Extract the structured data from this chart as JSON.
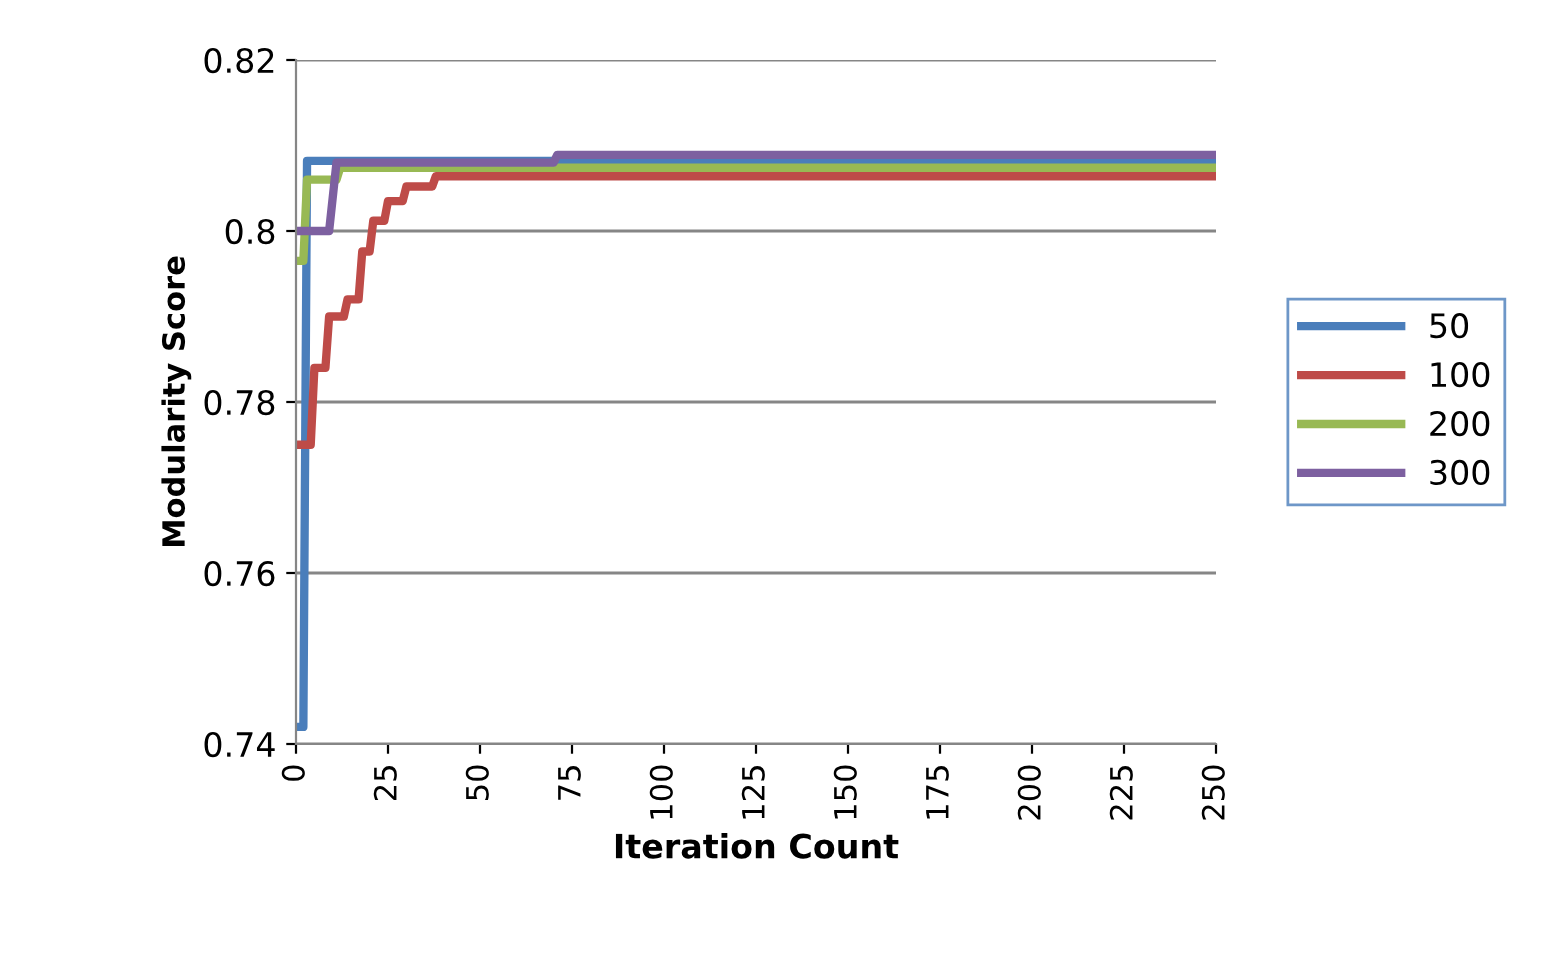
{
  "chart_data": {
    "type": "line",
    "xlabel": "Iteration Count",
    "ylabel": "Modularity Score",
    "xlim": [
      0,
      250
    ],
    "xticks": [
      0,
      25,
      50,
      75,
      100,
      125,
      150,
      175,
      200,
      225,
      250
    ],
    "ylim": [
      0.74,
      0.82
    ],
    "yticks": [
      0.74,
      0.76,
      0.78,
      0.8,
      0.82
    ],
    "grid": "y",
    "legend": "right",
    "marker": "none",
    "series": [
      {
        "name": "50",
        "color": "#4a7ebb",
        "x": [
          0,
          2,
          3,
          250
        ],
        "values": [
          0.742,
          0.742,
          0.8082,
          0.8082
        ]
      },
      {
        "name": "100",
        "color": "#be4b48",
        "x": [
          0,
          4,
          5,
          8,
          9,
          13,
          14,
          17,
          18,
          20,
          21,
          24,
          25,
          29,
          30,
          37,
          38,
          250
        ],
        "values": [
          0.775,
          0.775,
          0.784,
          0.784,
          0.79,
          0.79,
          0.792,
          0.792,
          0.7976,
          0.7976,
          0.8012,
          0.8012,
          0.8035,
          0.8035,
          0.8052,
          0.8052,
          0.8064,
          0.8064
        ]
      },
      {
        "name": "200",
        "color": "#98b954",
        "x": [
          0,
          2,
          3,
          11,
          12,
          250
        ],
        "values": [
          0.7965,
          0.7965,
          0.806,
          0.806,
          0.8074,
          0.8074
        ]
      },
      {
        "name": "300",
        "color": "#7d60a0",
        "x": [
          0,
          9,
          11,
          70,
          71,
          250
        ],
        "values": [
          0.8,
          0.8,
          0.808,
          0.808,
          0.8089,
          0.8089
        ]
      }
    ]
  }
}
